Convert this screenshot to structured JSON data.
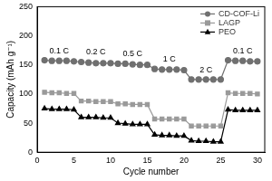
{
  "chart_data": {
    "type": "line",
    "x_label": "Cycle number",
    "y_label": "Capacity (mAh g⁻¹)",
    "x": [
      1,
      2,
      3,
      4,
      5,
      6,
      7,
      8,
      9,
      10,
      11,
      12,
      13,
      14,
      15,
      16,
      17,
      18,
      19,
      20,
      21,
      22,
      23,
      24,
      25,
      26,
      27,
      28,
      29,
      30
    ],
    "series": [
      {
        "name": "CD-COF-Li",
        "color": "#707070",
        "marker": "circle",
        "line_style": "solid",
        "values": [
          158,
          157,
          157,
          157,
          156,
          155,
          154,
          153,
          153,
          153,
          152,
          152,
          151,
          150,
          150,
          143,
          142,
          142,
          142,
          141,
          125,
          125,
          125,
          125,
          125,
          158,
          157,
          157,
          156,
          156
        ]
      },
      {
        "name": "LAGP",
        "color": "#9a9a9a",
        "marker": "square",
        "line_style": "solid",
        "values": [
          103,
          102,
          102,
          101,
          101,
          88,
          88,
          87,
          87,
          87,
          83,
          83,
          82,
          82,
          82,
          57,
          57,
          57,
          57,
          57,
          45,
          45,
          45,
          45,
          45,
          102,
          101,
          101,
          101,
          100
        ]
      },
      {
        "name": "PEO",
        "color": "#000000",
        "marker": "triangle",
        "line_style": "solid",
        "values": [
          75,
          74,
          74,
          74,
          73,
          60,
          60,
          60,
          59,
          59,
          50,
          49,
          48,
          48,
          48,
          30,
          29,
          29,
          28,
          28,
          20,
          19,
          19,
          18,
          18,
          73,
          72,
          72,
          72,
          72
        ]
      }
    ],
    "annotations": [
      "0.1 C",
      "0.2 C",
      "0.5 C",
      "1 C",
      "2 C",
      "0.1 C"
    ],
    "xlim": [
      0,
      31
    ],
    "xticks": [
      0,
      5,
      10,
      15,
      20,
      25,
      30
    ],
    "ylim": [
      0,
      250
    ],
    "yticks": [
      0,
      50,
      100,
      150,
      200,
      250
    ],
    "grid": false,
    "legend": "upper right"
  }
}
